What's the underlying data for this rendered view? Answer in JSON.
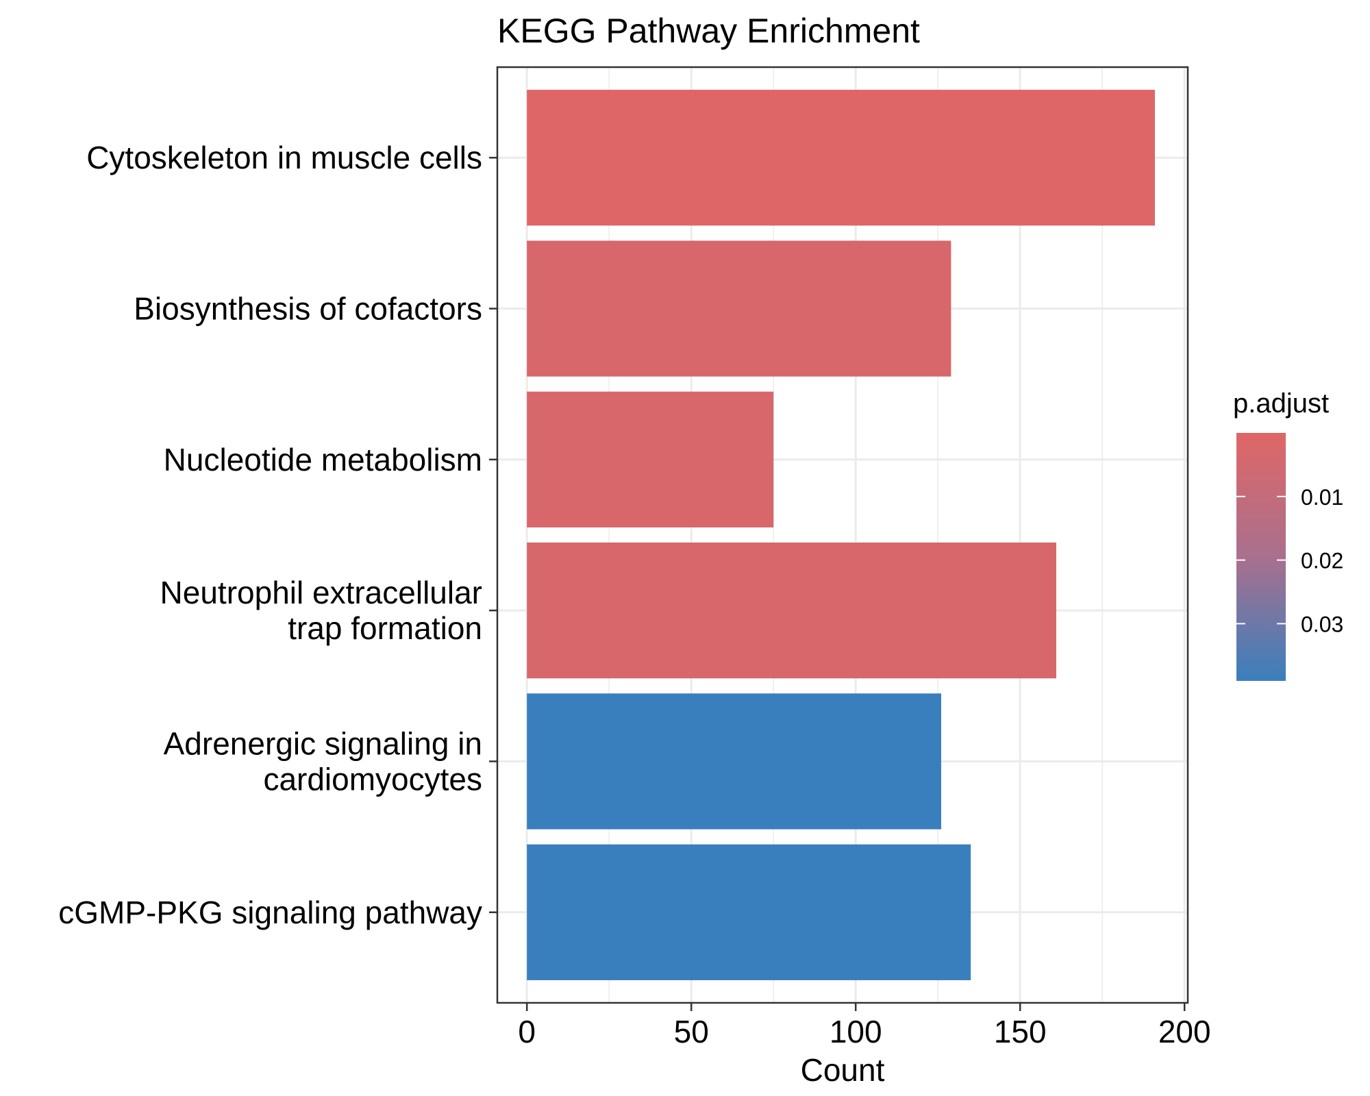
{
  "chart_data": {
    "type": "bar",
    "orientation": "horizontal",
    "title": "KEGG Pathway Enrichment",
    "xlabel": "Count",
    "ylabel": "",
    "xlim": [
      -9,
      201
    ],
    "x_ticks": [
      0,
      50,
      100,
      150,
      200
    ],
    "grid": true,
    "categories": [
      "Cytoskeleton in muscle cells",
      "Biosynthesis of cofactors",
      "Nucleotide metabolism",
      "Neutrophil extracellular trap formation",
      "Adrenergic signaling in cardiomyocytes",
      "cGMP-PKG signaling pathway"
    ],
    "category_display_lines": [
      [
        "Cytoskeleton in muscle cells"
      ],
      [
        "Biosynthesis of cofactors"
      ],
      [
        "Nucleotide metabolism"
      ],
      [
        "Neutrophil extracellular",
        "trap formation"
      ],
      [
        "Adrenergic signaling in",
        "cardiomyocytes"
      ],
      [
        "cGMP-PKG signaling pathway"
      ]
    ],
    "values": [
      191,
      129,
      75,
      161,
      126,
      135
    ],
    "p_adjust": [
      0.0005,
      0.002,
      0.002,
      0.002,
      0.039,
      0.039
    ],
    "legend": {
      "title": "p.adjust",
      "placement": "right",
      "range": [
        0.0,
        0.039
      ],
      "ticks": [
        0.01,
        0.02,
        0.03
      ],
      "tick_labels": [
        "0.01",
        "0.02",
        "0.03"
      ],
      "color_low": "#e06666",
      "color_high": "#3a7fbd"
    }
  }
}
